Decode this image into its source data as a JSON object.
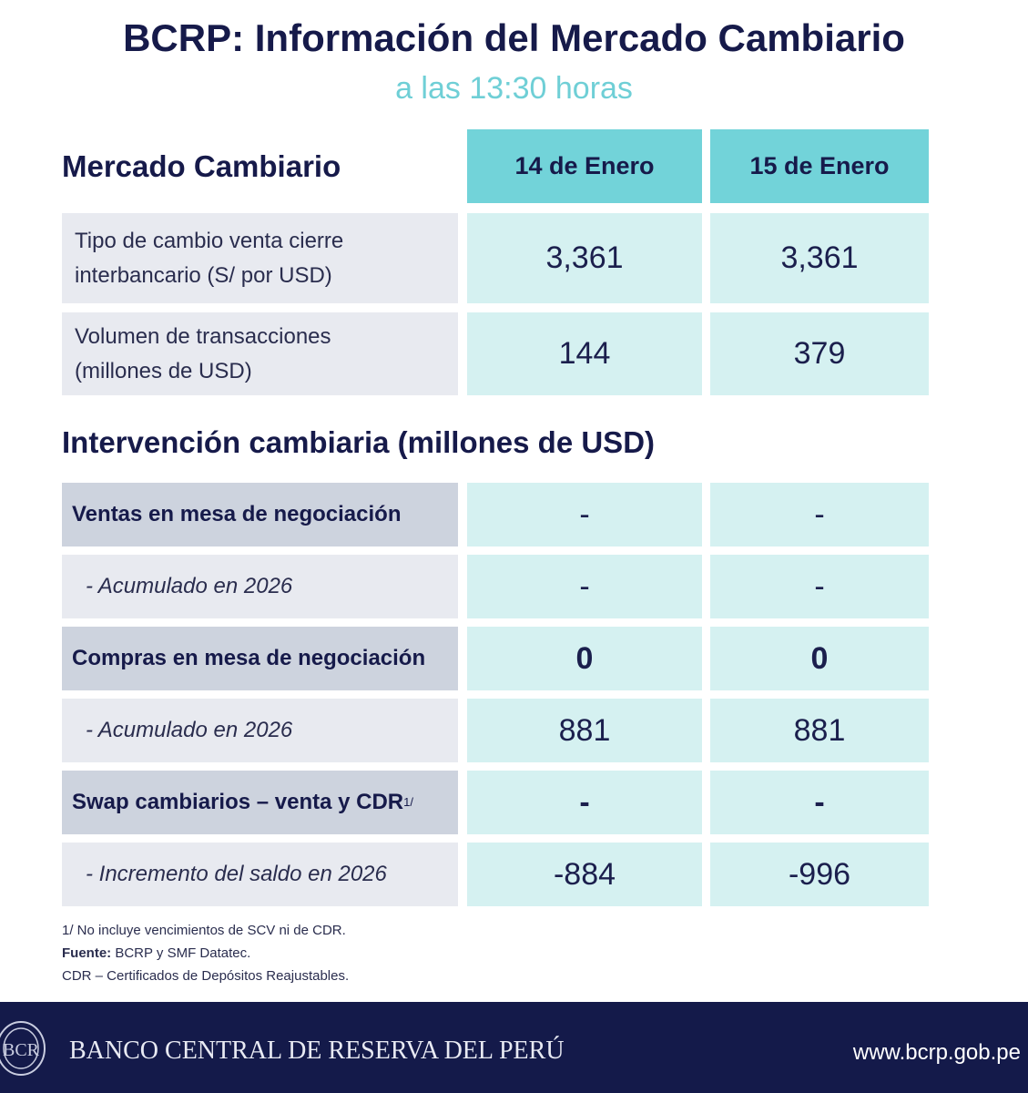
{
  "title": "BCRP: Información del Mercado Cambiario",
  "subtitle": "a las 13:30 horas",
  "market": {
    "heading": "Mercado Cambiario",
    "columns": [
      "14 de Enero",
      "15 de Enero"
    ],
    "rows": [
      {
        "label_1": "Tipo de cambio venta cierre",
        "label_2": "interbancario (S/ por USD)",
        "values": [
          "3,361",
          "3,361"
        ]
      },
      {
        "label_1": "Volumen de transacciones",
        "label_2": "(millones de USD)",
        "values": [
          "144",
          "379"
        ]
      }
    ]
  },
  "intervention": {
    "heading": "Intervención cambiaria (millones de USD)",
    "rows": [
      {
        "label": "Ventas en mesa de negociación",
        "values": [
          "-",
          "-"
        ]
      },
      {
        "label": "-  Acumulado en 2026",
        "values": [
          "-",
          "-"
        ]
      },
      {
        "label": "Compras en mesa de negociación",
        "values": [
          "0",
          "0"
        ]
      },
      {
        "label": "-  Acumulado en 2026",
        "values": [
          "881",
          "881"
        ]
      },
      {
        "label": "Swap cambiarios – venta y CDR",
        "sup": "1/",
        "values": [
          "-",
          "-"
        ]
      },
      {
        "label": "-  Incremento del saldo en 2026",
        "values": [
          "-884",
          "-996"
        ]
      }
    ]
  },
  "notes": {
    "n1": "1/ No incluye vencimientos de SCV ni de CDR.",
    "source_label": "Fuente:",
    "source": " BCRP y SMF Datatec.",
    "n3": "CDR – Certificados de Depósitos Reajustables."
  },
  "footer": {
    "bank": "BANCO CENTRAL DE RESERVA DEL PERÚ",
    "website": "www.bcrp.gob.pe",
    "logo_text": "BCR"
  }
}
